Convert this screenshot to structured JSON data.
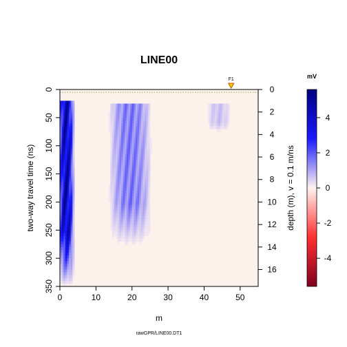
{
  "chart_data": {
    "type": "heatmap",
    "title": "LINE00",
    "xlabel": "m",
    "ylabel": "two-way travel time (ns)",
    "y2label": "depth (m),   v = 0.1 m/ns",
    "xlim": [
      0,
      55
    ],
    "ylim": [
      350,
      0
    ],
    "y2lim": [
      0,
      17.5
    ],
    "x_ticks": [
      "0",
      "10",
      "20",
      "30",
      "40",
      "50"
    ],
    "y_ticks": [
      "0",
      "50",
      "100",
      "150",
      "200",
      "250",
      "300",
      "350"
    ],
    "y2_ticks": [
      "0",
      "2",
      "4",
      "6",
      "8",
      "10",
      "12",
      "14",
      "16"
    ],
    "fiducial": {
      "label": "F1",
      "x": 47.5
    },
    "colorbar": {
      "title": "mV",
      "range": [
        -5.6,
        5.6
      ],
      "ticks": [
        "4",
        "2",
        "0",
        "-2",
        "-4"
      ],
      "colors": {
        "high": "#00007f",
        "mid_high": "#1a1aff",
        "zero": "#fff3ef",
        "mid_low": "#ff3030",
        "low": "#800020"
      }
    },
    "features": [
      {
        "name": "strong direct-wave band",
        "x_range": [
          0,
          3.5
        ],
        "t_range": [
          22,
          350
        ],
        "amplitude_mV": 5.5
      },
      {
        "name": "reflection patch",
        "x_range": [
          14,
          25
        ],
        "t_range": [
          25,
          280
        ],
        "amplitude_mV": 2.0
      },
      {
        "name": "reflection patch",
        "x_range": [
          41,
          47
        ],
        "t_range": [
          25,
          75
        ],
        "amplitude_mV": 0.8
      }
    ],
    "grid": false,
    "legend": "colorbar-right"
  },
  "footer": {
    "source_label": "rawGPR/LINE00.DT1"
  }
}
